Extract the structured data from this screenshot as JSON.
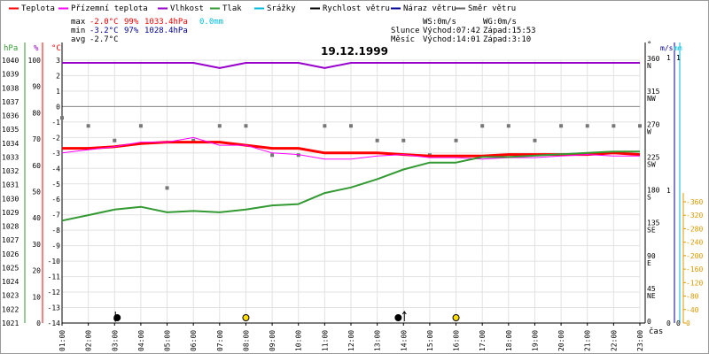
{
  "date": "19.12.1999",
  "legend": [
    {
      "label": "Teplota",
      "color": "#ff0000"
    },
    {
      "label": "Přízemní teplota",
      "color": "#ff00ff"
    },
    {
      "label": "Vlhkost",
      "color": "#9900cc"
    },
    {
      "label": "Tlak",
      "color": "#339933"
    },
    {
      "label": "Srážky",
      "color": "#00bbdd"
    },
    {
      "label": "Rychlost větru",
      "color": "#000000"
    },
    {
      "label": "Náraz větru",
      "color": "#000099"
    },
    {
      "label": "Směr větru",
      "color": "#666666"
    }
  ],
  "stats": {
    "max_label": "max",
    "max_temp": "-2.0°C",
    "max_hum": "99%",
    "max_press": "1033.4hPa",
    "max_precip": "0.0mm",
    "min_label": "min",
    "min_temp": "-3.2°C",
    "min_hum": "97%",
    "min_press": "1028.4hPa",
    "avg_label": "avg",
    "avg_temp": "-2.7°C"
  },
  "wind_info": {
    "ws": "WS:0m/s",
    "wg": "WG:0m/s"
  },
  "sun": {
    "label": "Slunce",
    "rise": "Východ:07:42",
    "set": "Západ:15:53"
  },
  "moon": {
    "label": "Měsíc",
    "rise": "Východ:14:01",
    "set": "Západ:3:10"
  },
  "chart_data": {
    "type": "line",
    "title": "19.12.1999",
    "x_hours": [
      1,
      2,
      3,
      4,
      5,
      6,
      7,
      8,
      9,
      10,
      11,
      12,
      13,
      14,
      15,
      16,
      17,
      18,
      19,
      20,
      21,
      22,
      23
    ],
    "x_tick_labels": [
      "01:00",
      "02:00",
      "03:00",
      "04:00",
      "05:00",
      "06:00",
      "07:00",
      "08:00",
      "09:00",
      "10:00",
      "11:00",
      "12:00",
      "13:00",
      "14:00",
      "15:00",
      "16:00",
      "17:00",
      "18:00",
      "19:00",
      "20:00",
      "21:00",
      "22:00",
      "23:00"
    ],
    "xlabel": "čas",
    "axes": {
      "press": {
        "unit": "hPa",
        "min": 1021,
        "max": 1040,
        "ticks": [
          1021,
          1022,
          1023,
          1024,
          1025,
          1026,
          1027,
          1028,
          1029,
          1030,
          1031,
          1032,
          1033,
          1034,
          1035,
          1036,
          1037,
          1038,
          1039,
          1040
        ],
        "color": "#339933"
      },
      "hum": {
        "unit": "%",
        "min": 0,
        "max": 100,
        "ticks": [
          0,
          10,
          20,
          30,
          40,
          50,
          60,
          70,
          80,
          90,
          100
        ],
        "color": "#ff0000"
      },
      "temp": {
        "unit": "°C",
        "min": -14,
        "max": 3,
        "ticks": [
          -14,
          -13,
          -12,
          -11,
          -10,
          -9,
          -8,
          -7,
          -6,
          -5,
          -4,
          -3,
          -2,
          -1,
          0,
          1,
          2,
          3
        ],
        "color": "#ff0000"
      },
      "dir": {
        "unit": "°",
        "min": 0,
        "max": 360,
        "ticks": [
          0,
          45,
          90,
          135,
          180,
          225,
          270,
          315,
          360
        ],
        "names": [
          "N",
          "NE",
          "E",
          "SE",
          "S",
          "SW",
          "W",
          "NW",
          "N"
        ]
      },
      "wind": {
        "unit": "m/s",
        "ticks": [
          0,
          1
        ],
        "color": "#000099"
      },
      "precip": {
        "unit": "mm",
        "ticks": [
          0,
          1
        ],
        "color": "#00bbdd"
      },
      "deg": {
        "unit": "°",
        "ticks": [
          0,
          40,
          80,
          120,
          160,
          200,
          240,
          280,
          320,
          360
        ],
        "color": "#dd9900"
      }
    },
    "series": [
      {
        "name": "Teplota",
        "color": "#ff0000",
        "axis": "temp",
        "width": 3,
        "x": [
          1,
          2,
          3,
          4,
          5,
          6,
          7,
          8,
          9,
          10,
          11,
          12,
          13,
          14,
          15,
          16,
          17,
          18,
          19,
          20,
          21,
          22,
          23
        ],
        "values": [
          -2.7,
          -2.7,
          -2.6,
          -2.4,
          -2.3,
          -2.3,
          -2.3,
          -2.5,
          -2.7,
          -2.7,
          -3.0,
          -3.0,
          -3.0,
          -3.1,
          -3.2,
          -3.2,
          -3.2,
          -3.1,
          -3.1,
          -3.1,
          -3.1,
          -3.0,
          -3.1
        ]
      },
      {
        "name": "Přízemní teplota",
        "color": "#ff00ff",
        "axis": "temp",
        "width": 1,
        "x": [
          1,
          2,
          3,
          4,
          5,
          6,
          7,
          8,
          9,
          10,
          11,
          12,
          13,
          14,
          15,
          16,
          17,
          18,
          19,
          20,
          21,
          22,
          23
        ],
        "values": [
          -3.0,
          -2.8,
          -2.6,
          -2.3,
          -2.3,
          -2.0,
          -2.5,
          -2.5,
          -3.0,
          -3.1,
          -3.4,
          -3.4,
          -3.2,
          -3.1,
          -3.3,
          -3.3,
          -3.4,
          -3.3,
          -3.3,
          -3.2,
          -3.1,
          -3.2,
          -3.2
        ]
      },
      {
        "name": "Vlhkost",
        "color": "#9900cc",
        "axis": "hum",
        "width": 2,
        "x": [
          1,
          2,
          3,
          4,
          5,
          6,
          7,
          8,
          9,
          10,
          11,
          12,
          13,
          14,
          15,
          16,
          17,
          18,
          19,
          20,
          21,
          22,
          23
        ],
        "values": [
          99,
          99,
          99,
          99,
          99,
          99,
          97,
          99,
          99,
          99,
          97,
          99,
          99,
          99,
          99,
          99,
          99,
          99,
          99,
          99,
          99,
          99,
          99
        ]
      },
      {
        "name": "Tlak",
        "color": "#339933",
        "axis": "press",
        "width": 2,
        "x": [
          1,
          2,
          3,
          4,
          5,
          6,
          7,
          8,
          9,
          10,
          11,
          12,
          13,
          14,
          15,
          16,
          17,
          18,
          19,
          20,
          21,
          22,
          23
        ],
        "values": [
          1028.4,
          1028.8,
          1029.2,
          1029.4,
          1029.0,
          1029.1,
          1029.0,
          1029.2,
          1029.5,
          1029.6,
          1030.4,
          1030.8,
          1031.4,
          1032.1,
          1032.6,
          1032.6,
          1033.0,
          1033.0,
          1033.1,
          1033.2,
          1033.3,
          1033.4,
          1033.4
        ]
      },
      {
        "name": "Rychlost větru",
        "color": "#000000",
        "axis": "wind",
        "width": 1,
        "x": [
          1,
          23
        ],
        "values": [
          0,
          0
        ]
      }
    ],
    "wind_direction": {
      "x": [
        1,
        2,
        3,
        4,
        5,
        6,
        7,
        8,
        9,
        10,
        11,
        12,
        13,
        14,
        15,
        16,
        17,
        18,
        19,
        20,
        21,
        22,
        23
      ],
      "values": [
        281,
        270,
        250,
        270,
        185,
        250,
        270,
        270,
        230,
        230,
        270,
        270,
        250,
        250,
        230,
        250,
        270,
        270,
        250,
        270,
        270,
        270,
        270
      ]
    },
    "gust_markers": [
      {
        "x": 3.1,
        "type": "dot",
        "color": "#000000"
      },
      {
        "x": 8.0,
        "type": "dot",
        "color": "#ffdd00"
      },
      {
        "x": 13.8,
        "type": "dot",
        "color": "#000000"
      },
      {
        "x": 16.0,
        "type": "dot",
        "color": "#ffdd00"
      }
    ],
    "wind_arrows": [
      {
        "x": 3.0,
        "direction": "down"
      },
      {
        "x": 14.0,
        "direction": "up"
      }
    ],
    "grid": true
  }
}
